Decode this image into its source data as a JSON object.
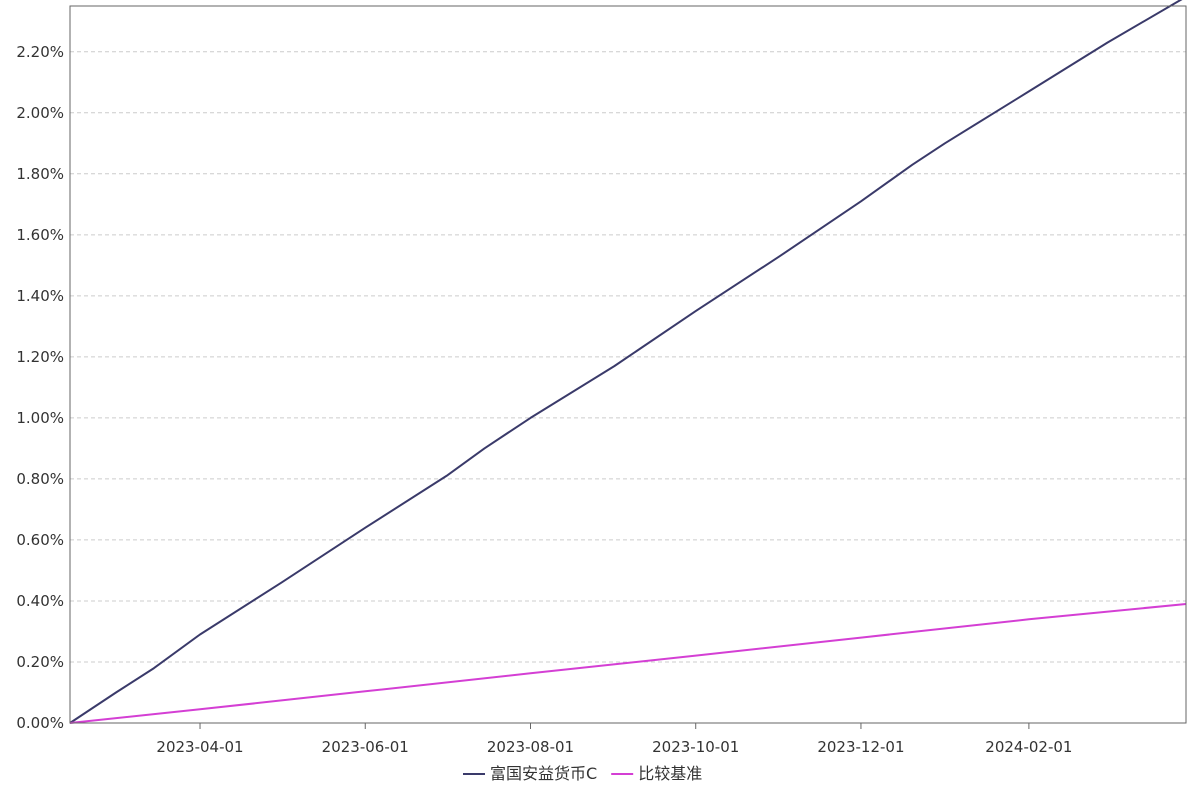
{
  "chart_data": {
    "type": "line",
    "title": "",
    "xlabel": "",
    "ylabel": "",
    "x_range": [
      "2023-02-12",
      "2024-03-30"
    ],
    "ylim": [
      0,
      0.0235
    ],
    "grid": true,
    "legend_position": "bottom-center",
    "x_ticks": [
      "2023-04-01",
      "2023-06-01",
      "2023-08-01",
      "2023-10-01",
      "2023-12-01",
      "2024-02-01"
    ],
    "y_ticks": [
      0,
      0.002,
      0.004,
      0.006,
      0.008,
      0.01,
      0.012,
      0.014,
      0.016,
      0.018,
      0.02,
      0.022
    ],
    "y_tick_labels": [
      "0.00%",
      "0.20%",
      "0.40%",
      "0.60%",
      "0.80%",
      "1.00%",
      "1.20%",
      "1.40%",
      "1.60%",
      "1.80%",
      "2.00%",
      "2.20%"
    ],
    "series": [
      {
        "name": "富国安益货币C",
        "color": "#3a3a6a",
        "points": [
          [
            "2023-02-12",
            0.0
          ],
          [
            "2023-03-01",
            0.001
          ],
          [
            "2023-03-15",
            0.0018
          ],
          [
            "2023-04-01",
            0.0029
          ],
          [
            "2023-05-01",
            0.0046
          ],
          [
            "2023-06-01",
            0.0064
          ],
          [
            "2023-07-01",
            0.0081
          ],
          [
            "2023-07-15",
            0.009
          ],
          [
            "2023-08-01",
            0.01
          ],
          [
            "2023-09-01",
            0.0117
          ],
          [
            "2023-10-01",
            0.0135
          ],
          [
            "2023-11-01",
            0.0153
          ],
          [
            "2023-12-01",
            0.0171
          ],
          [
            "2023-12-20",
            0.0183
          ],
          [
            "2024-01-01",
            0.019
          ],
          [
            "2024-02-01",
            0.0207
          ],
          [
            "2024-03-01",
            0.0223
          ],
          [
            "2024-03-30",
            0.0238
          ]
        ]
      },
      {
        "name": "比较基准",
        "color": "#d43fd4",
        "points": [
          [
            "2023-02-12",
            0.0
          ],
          [
            "2023-04-01",
            0.00045
          ],
          [
            "2023-06-01",
            0.00104
          ],
          [
            "2023-08-01",
            0.00163
          ],
          [
            "2023-10-01",
            0.00221
          ],
          [
            "2023-12-01",
            0.0028
          ],
          [
            "2024-02-01",
            0.0034
          ],
          [
            "2024-03-30",
            0.0039
          ]
        ]
      }
    ]
  }
}
